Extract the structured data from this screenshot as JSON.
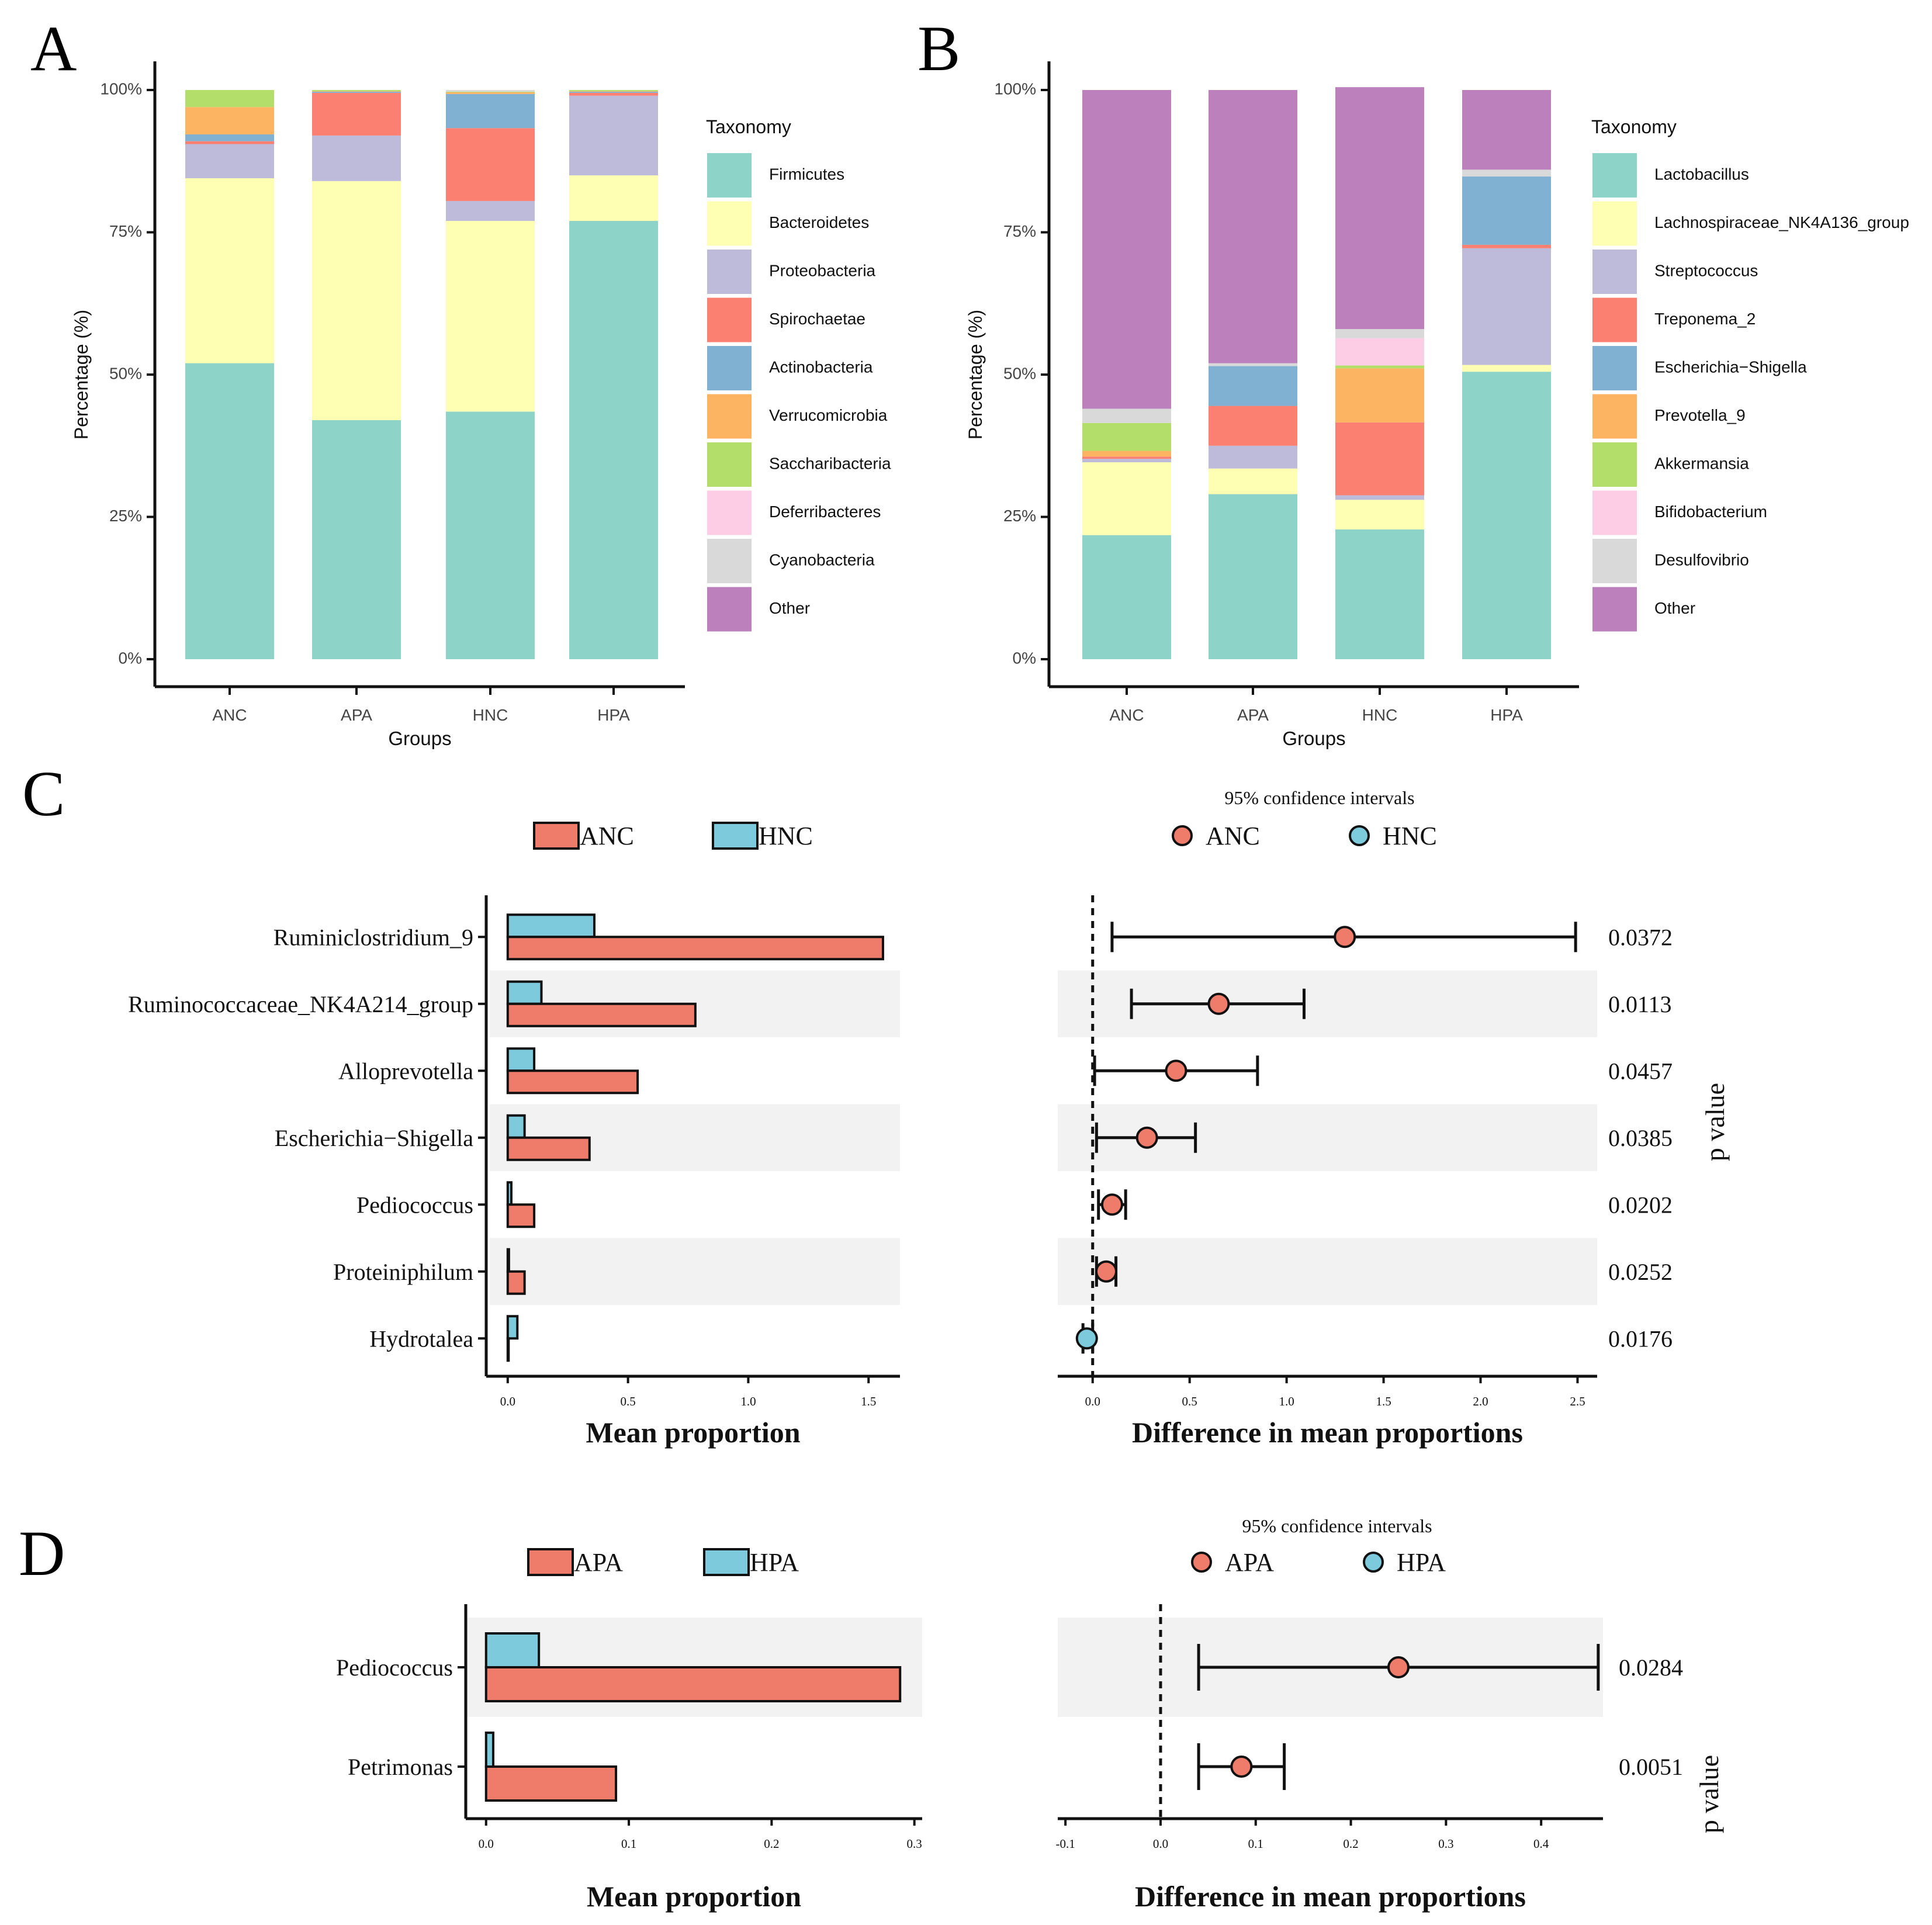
{
  "colors": {
    "tax": [
      "#8DD3C7",
      "#FFFFB3",
      "#BEBADA",
      "#FB8072",
      "#80B1D3",
      "#FDB462",
      "#B3DE69",
      "#FCCDE5",
      "#D9D9D9",
      "#BC80BD"
    ],
    "red": "#EF7B6B",
    "blue": "#7CCADB",
    "band": "#F2F2F2"
  },
  "chart_data": [
    {
      "panel": "A",
      "type": "bar",
      "stacked": true,
      "xlabel": "Groups",
      "ylabel": "Percentage (%)",
      "yticks": [
        "0%",
        "25%",
        "50%",
        "75%",
        "100%"
      ],
      "ylim": [
        0,
        100
      ],
      "legend_title": "Taxonomy",
      "categories": [
        "ANC",
        "APA",
        "HNC",
        "HPA"
      ],
      "series": [
        {
          "name": "Firmicutes",
          "values": [
            52,
            42,
            43.5,
            77
          ]
        },
        {
          "name": "Bacteroidetes",
          "values": [
            32.5,
            42,
            33.5,
            8
          ]
        },
        {
          "name": "Proteobacteria",
          "values": [
            6,
            8,
            3.5,
            14
          ]
        },
        {
          "name": "Spirochaetae",
          "values": [
            0.5,
            7.5,
            12.8,
            0.5
          ]
        },
        {
          "name": "Actinobacteria",
          "values": [
            1.2,
            0.2,
            6,
            0.2
          ]
        },
        {
          "name": "Verrucomicrobia",
          "values": [
            4.8,
            0.1,
            0.3,
            0.1
          ]
        },
        {
          "name": "Saccharibacteria",
          "values": [
            3,
            0.2,
            0.1,
            0.2
          ]
        },
        {
          "name": "Deferribacteres",
          "values": [
            0,
            0,
            0,
            0
          ]
        },
        {
          "name": "Cyanobacteria",
          "values": [
            0,
            0,
            0.3,
            0
          ]
        },
        {
          "name": "Other",
          "values": [
            0,
            0,
            0,
            0
          ]
        }
      ]
    },
    {
      "panel": "B",
      "type": "bar",
      "stacked": true,
      "xlabel": "Groups",
      "ylabel": "Percentage (%)",
      "yticks": [
        "0%",
        "25%",
        "50%",
        "75%",
        "100%"
      ],
      "ylim": [
        0,
        100
      ],
      "legend_title": "Taxonomy",
      "categories": [
        "ANC",
        "APA",
        "HNC",
        "HPA"
      ],
      "series": [
        {
          "name": "Lactobacillus",
          "values": [
            21.8,
            29,
            22.8,
            50.5
          ]
        },
        {
          "name": "Lachnospiraceae_NK4A136_group",
          "values": [
            12.8,
            4.5,
            5.2,
            1.2
          ]
        },
        {
          "name": "Streptococcus",
          "values": [
            0.6,
            4,
            0.8,
            20.5
          ]
        },
        {
          "name": "Treponema_2",
          "values": [
            0.4,
            7,
            12.8,
            0.6
          ]
        },
        {
          "name": "Escherichia−Shigella",
          "values": [
            0,
            7,
            0,
            12
          ]
        },
        {
          "name": "Prevotella_9",
          "values": [
            1,
            0,
            9.5,
            0
          ]
        },
        {
          "name": "Akkermansia",
          "values": [
            4.9,
            0,
            0.5,
            0
          ]
        },
        {
          "name": "Bifidobacterium",
          "values": [
            0,
            0,
            4.8,
            0
          ]
        },
        {
          "name": "Desulfovibrio",
          "values": [
            2.5,
            0.5,
            1.6,
            1.2
          ]
        },
        {
          "name": "Other",
          "values": [
            56,
            48,
            42.5,
            14
          ]
        }
      ]
    },
    {
      "panel": "C",
      "type": "bar",
      "subtype": "extended_error_bar",
      "groups": [
        "ANC",
        "HNC"
      ],
      "left_xlabel": "Mean proportion",
      "right_xlabel": "Difference in mean proportions",
      "ci_title": "95% confidence intervals",
      "pvalue_label": "p value",
      "left_xticks": [
        "0.0",
        "0.5",
        "1.0",
        "1.5"
      ],
      "left_xlim": [
        -0.07,
        1.65
      ],
      "right_xticks": [
        "0.0",
        "0.5",
        "1.0",
        "1.5",
        "2.0",
        "2.5"
      ],
      "right_xlim": [
        -0.18,
        2.58
      ],
      "features": [
        {
          "name": "Ruminiclostridium_9",
          "g1": 1.56,
          "g2": 0.36,
          "diff": 1.3,
          "lo": 0.1,
          "hi": 2.49,
          "winner": "g1",
          "p": "0.0372"
        },
        {
          "name": "Ruminococcaceae_NK4A214_group",
          "g1": 0.78,
          "g2": 0.14,
          "diff": 0.65,
          "lo": 0.2,
          "hi": 1.09,
          "winner": "g1",
          "p": "0.0113"
        },
        {
          "name": "Alloprevotella",
          "g1": 0.54,
          "g2": 0.11,
          "diff": 0.43,
          "lo": 0.01,
          "hi": 0.85,
          "winner": "g1",
          "p": "0.0457"
        },
        {
          "name": "Escherichia−Shigella",
          "g1": 0.34,
          "g2": 0.07,
          "diff": 0.28,
          "lo": 0.02,
          "hi": 0.53,
          "winner": "g1",
          "p": "0.0385"
        },
        {
          "name": "Pediococcus",
          "g1": 0.11,
          "g2": 0.015,
          "diff": 0.1,
          "lo": 0.03,
          "hi": 0.17,
          "winner": "g1",
          "p": "0.0202"
        },
        {
          "name": "Proteiniphilum",
          "g1": 0.07,
          "g2": 0.005,
          "diff": 0.07,
          "lo": 0.02,
          "hi": 0.12,
          "winner": "g1",
          "p": "0.0252"
        },
        {
          "name": "Hydrotalea",
          "g1": 0.0,
          "g2": 0.04,
          "diff": -0.03,
          "lo": -0.05,
          "hi": 0.0,
          "winner": "g2",
          "p": "0.0176"
        }
      ]
    },
    {
      "panel": "D",
      "type": "bar",
      "subtype": "extended_error_bar",
      "groups": [
        "APA",
        "HPA"
      ],
      "left_xlabel": "Mean proportion",
      "right_xlabel": "Difference in mean proportions",
      "ci_title": "95% confidence intervals",
      "pvalue_label": "p value",
      "left_xticks": [
        "0.0",
        "0.1",
        "0.2",
        "0.3"
      ],
      "left_xlim": [
        -0.013,
        0.303
      ],
      "right_xticks": [
        "-0.1",
        "0.0",
        "0.1",
        "0.2",
        "0.3",
        "0.4"
      ],
      "right_xlim": [
        -0.105,
        0.465
      ],
      "features": [
        {
          "name": "Pediococcus",
          "g1": 0.29,
          "g2": 0.037,
          "diff": 0.25,
          "lo": 0.04,
          "hi": 0.46,
          "winner": "g1",
          "p": "0.0284"
        },
        {
          "name": "Petrimonas",
          "g1": 0.091,
          "g2": 0.005,
          "diff": 0.085,
          "lo": 0.04,
          "hi": 0.13,
          "winner": "g1",
          "p": "0.0051"
        }
      ]
    }
  ],
  "panel_labels": [
    "A",
    "B",
    "C",
    "D"
  ]
}
